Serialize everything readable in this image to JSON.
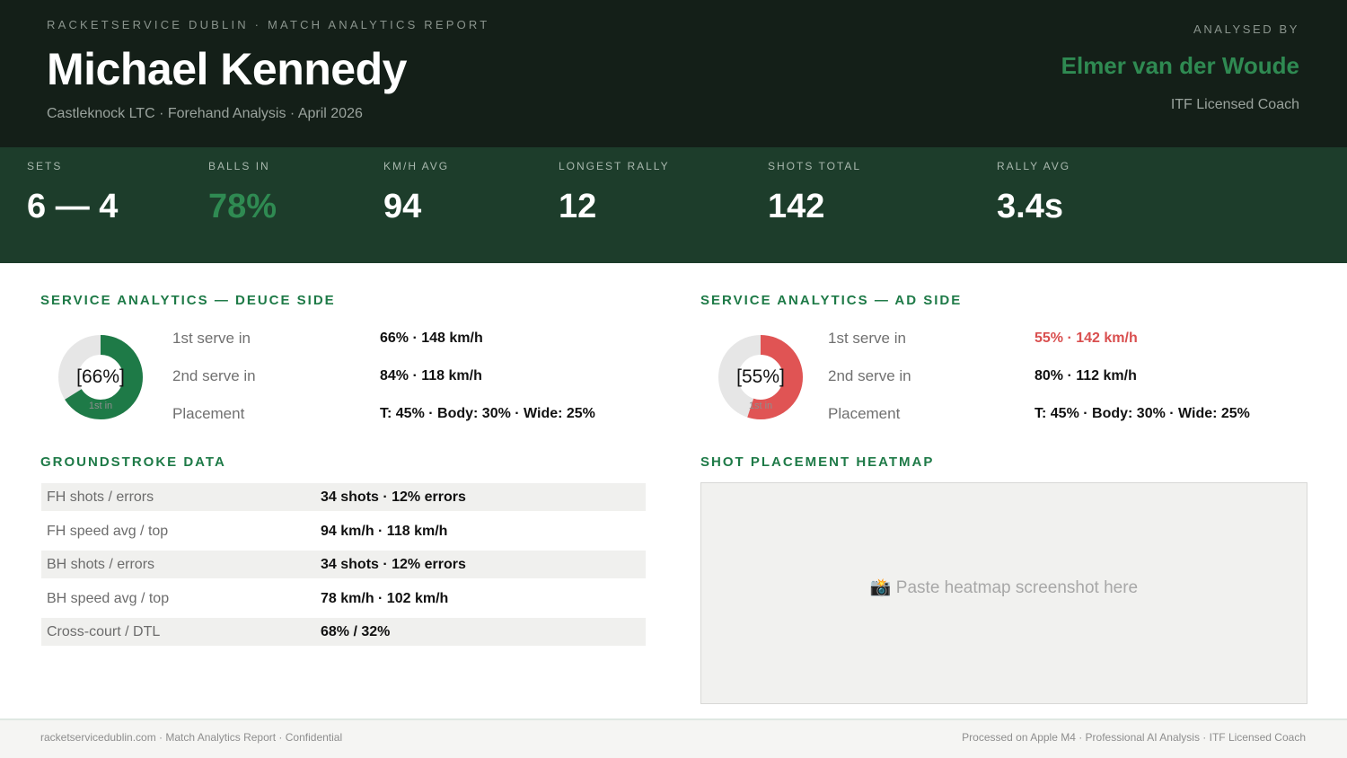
{
  "header": {
    "kicker": "RACKETSERVICE DUBLIN  ·  MATCH ANALYTICS REPORT",
    "player_name": "Michael Kennedy",
    "subline": "Castleknock LTC  ·  Forehand Analysis  ·  April 2026",
    "analysed_by_label": "ANALYSED BY",
    "coach_name": "Elmer van der Woude",
    "coach_title": "ITF Licensed Coach"
  },
  "stats": [
    {
      "label": "SETS",
      "value": "6 — 4"
    },
    {
      "label": "BALLS IN",
      "value": "78%"
    },
    {
      "label": "KM/H AVG",
      "value": "94"
    },
    {
      "label": "LONGEST RALLY",
      "value": "12"
    },
    {
      "label": "SHOTS TOTAL",
      "value": "142"
    },
    {
      "label": "RALLY AVG",
      "value": "3.4s"
    }
  ],
  "deuce": {
    "title": "SERVICE ANALYTICS — DEUCE SIDE",
    "donut_pct_label": "[66%]",
    "donut_sub": "1st in",
    "donut_fraction": 0.66,
    "donut_color": "#1e7a47",
    "rows": [
      {
        "label": "1st serve in",
        "value": "66%  ·  148 km/h"
      },
      {
        "label": "2nd serve in",
        "value": "84%  ·  118 km/h"
      },
      {
        "label": "Placement",
        "value": "T: 45%  ·  Body: 30%  ·  Wide: 25%"
      }
    ]
  },
  "ad": {
    "title": "SERVICE ANALYTICS — AD SIDE",
    "donut_pct_label": "[55%]",
    "donut_sub": "1st in",
    "donut_fraction": 0.55,
    "donut_color": "#e05454",
    "rows": [
      {
        "label": "1st serve in",
        "value": "55%  ·  142 km/h"
      },
      {
        "label": "2nd serve in",
        "value": "80%  ·  112 km/h"
      },
      {
        "label": "Placement",
        "value": "T: 45%  ·  Body: 30%  ·  Wide: 25%"
      }
    ]
  },
  "groundstrokes": {
    "title": "GROUNDSTROKE DATA",
    "rows": [
      {
        "label": "FH shots / errors",
        "value": "34 shots  ·  12% errors"
      },
      {
        "label": "FH speed avg / top",
        "value": "94 km/h  ·  118 km/h"
      },
      {
        "label": "BH shots / errors",
        "value": "34 shots  ·  12% errors"
      },
      {
        "label": "BH speed avg / top",
        "value": "78 km/h  ·  102 km/h"
      },
      {
        "label": "Cross-court / DTL",
        "value": "68%  /  32%"
      }
    ]
  },
  "heatmap": {
    "title": "SHOT PLACEMENT HEATMAP",
    "icon": "camera-icon",
    "icon_glyph": "📸",
    "placeholder": "Paste heatmap screenshot here"
  },
  "footer": {
    "left": "racketservicedublin.com  ·  Match Analytics Report  ·  Confidential",
    "right": "Processed on Apple M4  ·  Professional AI Analysis  ·  ITF Licensed Coach"
  },
  "colors": {
    "header_bg": "#141f18",
    "stats_bg": "#1d3d2b",
    "accent_green": "#1e7a47",
    "coach_green": "#2f8a52",
    "warning_red": "#d94f4f",
    "donut_track": "#e6e6e6"
  }
}
